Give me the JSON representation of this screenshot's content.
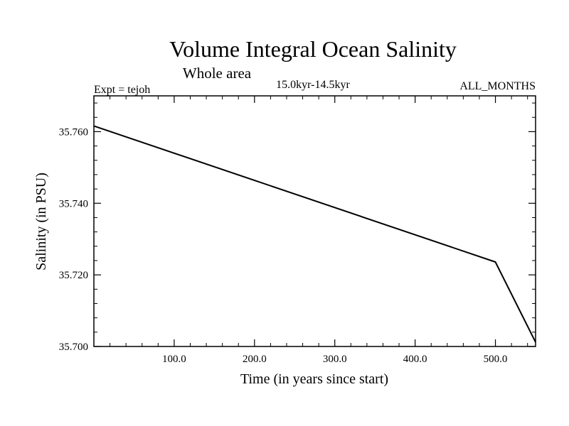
{
  "chart_data": {
    "type": "line",
    "title": "Volume Integral Ocean Salinity",
    "subtitle": "Whole area",
    "period": "15.0kyr-14.5kyr",
    "experiment": "Expt = tejoh",
    "months": "ALL_MONTHS",
    "xlabel": "Time (in years since start)",
    "ylabel": "Salinity (in PSU)",
    "xlim": [
      0,
      550
    ],
    "ylim": [
      35.7,
      35.77
    ],
    "xticks": [
      100,
      200,
      300,
      400,
      500
    ],
    "xtick_labels": [
      "100.0",
      "200.0",
      "300.0",
      "400.0",
      "500.0"
    ],
    "yticks": [
      35.7,
      35.72,
      35.74,
      35.76
    ],
    "ytick_labels": [
      "35.700",
      "35.720",
      "35.740",
      "35.760"
    ],
    "x_minor_step": 20,
    "y_minor_step": 0.004,
    "series": [
      {
        "name": "Salinity",
        "x": [
          0,
          500,
          550
        ],
        "values": [
          35.7616,
          35.7236,
          35.7012
        ]
      }
    ]
  }
}
